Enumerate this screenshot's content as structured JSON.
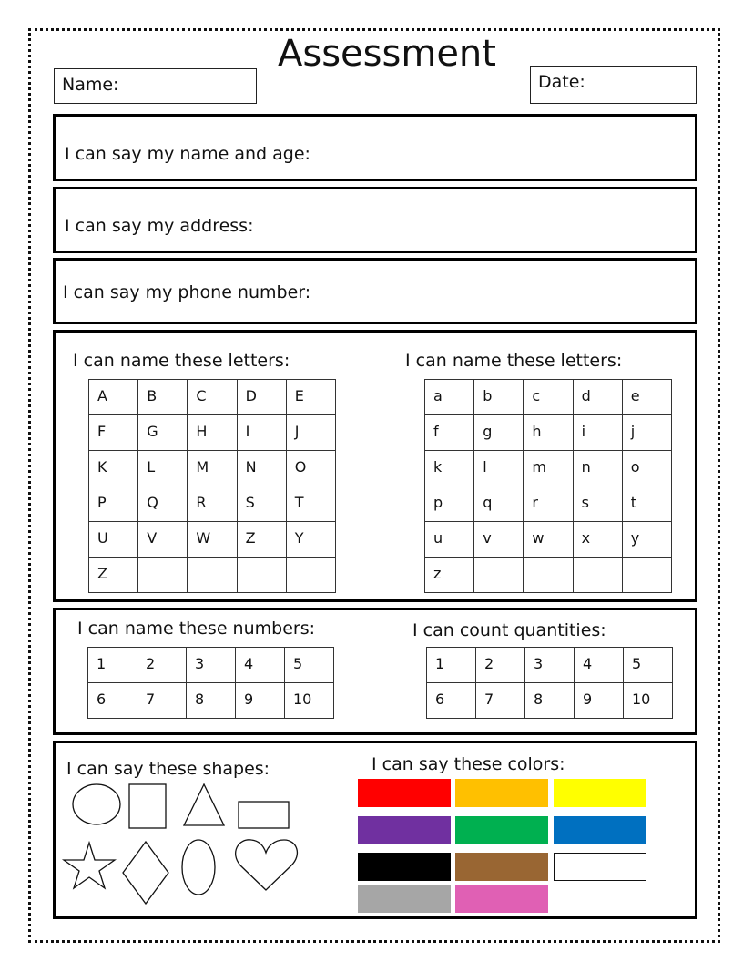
{
  "header": {
    "title": "Assessment",
    "name_label": "Name:",
    "date_label": "Date:"
  },
  "prompts": {
    "name_age": "I can say my name and age:",
    "address": "I can say my address:",
    "phone": "I can say my phone number:",
    "upper_letters": "I can name these letters:",
    "lower_letters": "I can name these letters:",
    "numbers": "I can name these numbers:",
    "quantities": "I can count quantities:",
    "shapes": "I can say these shapes:",
    "colors": "I can say these colors:"
  },
  "upper": [
    "A",
    "B",
    "C",
    "D",
    "E",
    "F",
    "G",
    "H",
    "I",
    "J",
    "K",
    "L",
    "M",
    "N",
    "O",
    "P",
    "Q",
    "R",
    "S",
    "T",
    "U",
    "V",
    "W",
    "Z",
    "Y",
    "Z",
    "",
    "",
    "",
    ""
  ],
  "lower": [
    "a",
    "b",
    "c",
    "d",
    "e",
    "f",
    "g",
    "h",
    "i",
    "j",
    "k",
    "l",
    "m",
    "n",
    "o",
    "p",
    "q",
    "r",
    "s",
    "t",
    "u",
    "v",
    "w",
    "x",
    "y",
    "z",
    "",
    "",
    "",
    ""
  ],
  "numbers": [
    "1",
    "2",
    "3",
    "4",
    "5",
    "6",
    "7",
    "8",
    "9",
    "10"
  ],
  "quantities": [
    "1",
    "2",
    "3",
    "4",
    "5",
    "6",
    "7",
    "8",
    "9",
    "10"
  ],
  "shapes": [
    "circle",
    "rectangle",
    "triangle",
    "rectangle",
    "star",
    "diamond",
    "oval",
    "heart"
  ],
  "colors": [
    "#ff0000",
    "#ffc000",
    "#ffff00",
    "#7030a0",
    "#00b050",
    "#0070c0",
    "#000000",
    "#996633",
    "#ffffff",
    "#a6a6a6",
    "#e060b4"
  ]
}
